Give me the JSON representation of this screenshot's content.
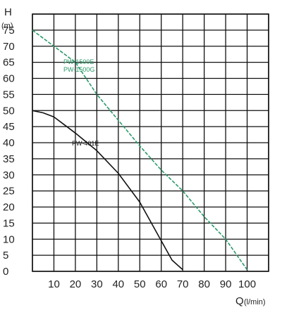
{
  "chart_data": {
    "type": "line",
    "ylabel": "H",
    "ylabel_unit": "(m)",
    "xlabel": "Q",
    "xlabel_unit": "(l/min)",
    "xlim": [
      0,
      110
    ],
    "ylim": [
      0,
      80
    ],
    "x_ticks": [
      10,
      20,
      30,
      40,
      50,
      60,
      70,
      80,
      90,
      100
    ],
    "y_ticks": [
      0,
      5,
      10,
      15,
      20,
      25,
      30,
      35,
      40,
      45,
      50,
      55,
      60,
      65,
      70,
      75
    ],
    "grid": true,
    "series": [
      {
        "name": "PW-1500E",
        "name2": "PW-1500G",
        "color": "#2a9a6a",
        "style": "dashed",
        "x": [
          0,
          10,
          20,
          30,
          40,
          50,
          60,
          70,
          80,
          90,
          100
        ],
        "y": [
          75,
          70,
          65,
          55,
          47,
          39,
          31.5,
          25,
          17,
          10,
          0.5
        ]
      },
      {
        "name": "PW-401E",
        "color": "#111111",
        "style": "solid",
        "x": [
          0,
          5,
          10,
          15,
          20,
          30,
          40,
          50,
          60,
          65,
          70
        ],
        "y": [
          50,
          49.3,
          48,
          45.5,
          43,
          37.5,
          30.5,
          21.5,
          9.5,
          3.5,
          0.5
        ]
      }
    ]
  }
}
